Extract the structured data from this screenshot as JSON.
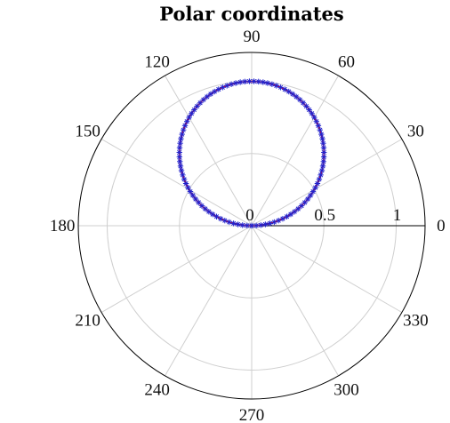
{
  "chart_data": {
    "type": "polar-scatter-line",
    "title": "Polar coordinates",
    "theta_unit": "degrees",
    "r_range": [
      0,
      1.2
    ],
    "grid": true,
    "angle_ticks": [
      {
        "deg": 0,
        "label": "0"
      },
      {
        "deg": 30,
        "label": "30"
      },
      {
        "deg": 60,
        "label": "60"
      },
      {
        "deg": 90,
        "label": "90"
      },
      {
        "deg": 120,
        "label": "120"
      },
      {
        "deg": 150,
        "label": "150"
      },
      {
        "deg": 180,
        "label": "180"
      },
      {
        "deg": 210,
        "label": "210"
      },
      {
        "deg": 240,
        "label": "240"
      },
      {
        "deg": 270,
        "label": "270"
      },
      {
        "deg": 300,
        "label": "300"
      },
      {
        "deg": 330,
        "label": "330"
      }
    ],
    "r_ticks": [
      {
        "r": 0,
        "label": "0"
      },
      {
        "r": 0.5,
        "label": "0.5"
      },
      {
        "r": 1,
        "label": "1"
      }
    ],
    "series": [
      {
        "function": "r = sin(theta)",
        "theta_range": [
          0,
          180
        ],
        "n_points": 100,
        "line_color": "#ff0000",
        "marker_color": "#2222cc",
        "marker": "asterisk"
      }
    ]
  }
}
